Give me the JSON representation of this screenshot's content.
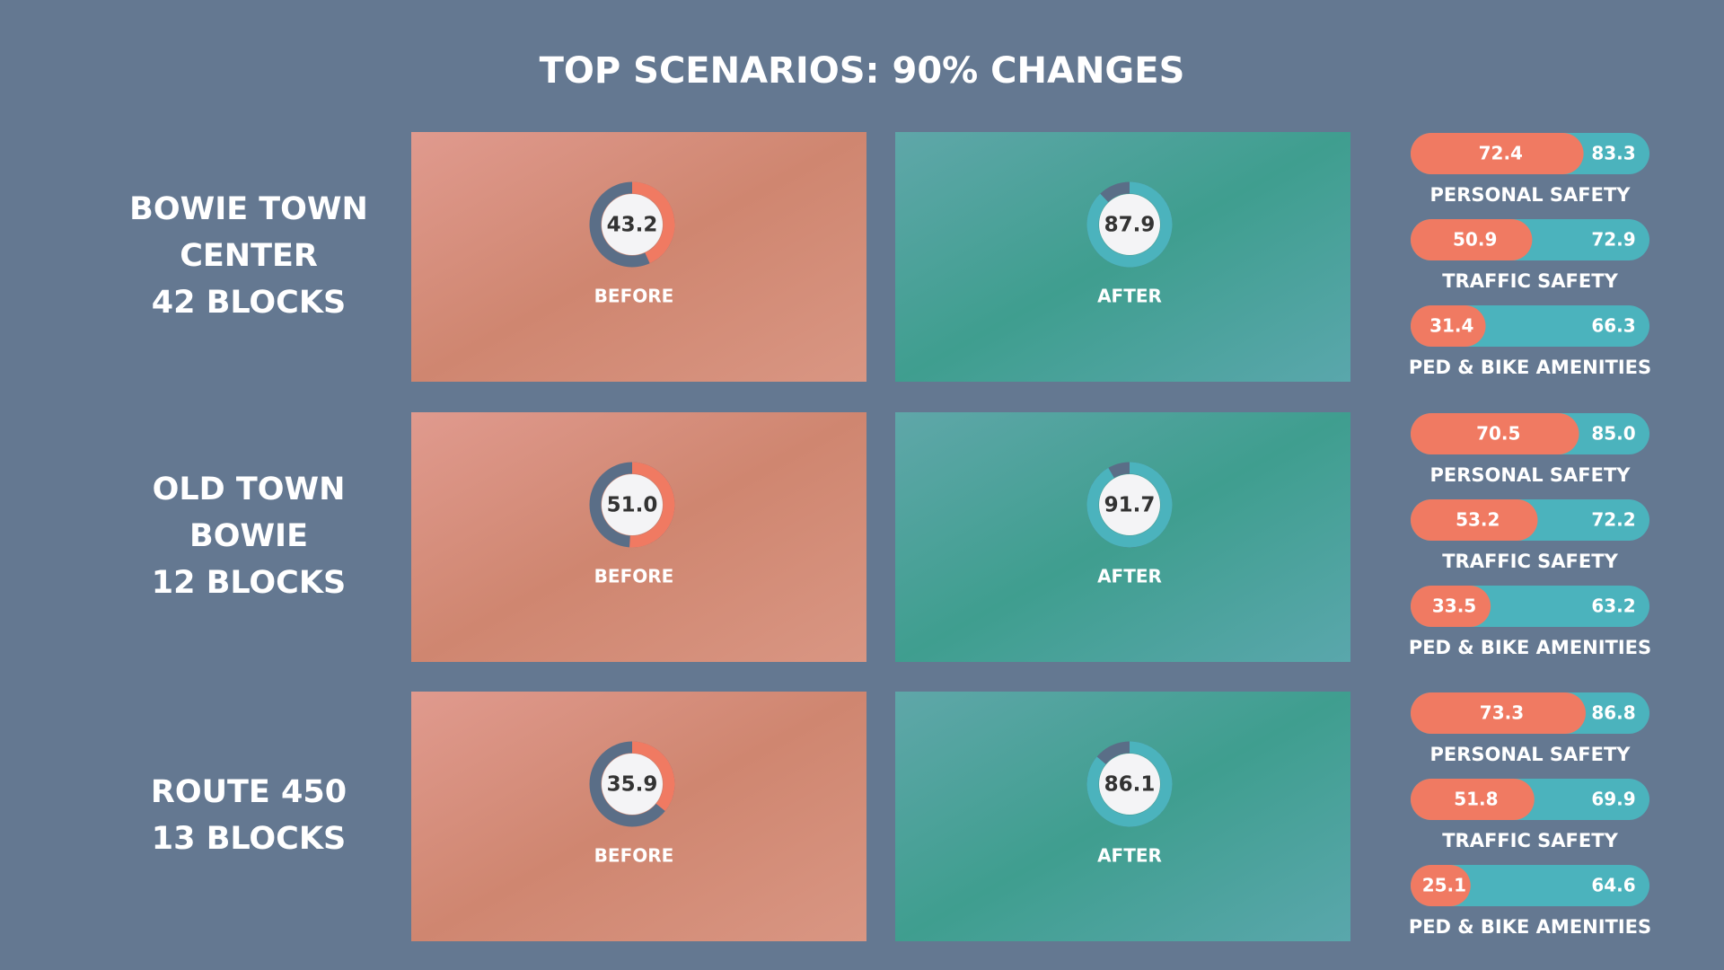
{
  "title": "TOP SCENARIOS: 90% CHANGES",
  "scenarios": [
    {
      "name_lines": [
        "BOWIE TOWN",
        "CENTER",
        "42 BLOCKS"
      ],
      "before": {
        "score": 43.2,
        "label": "BEFORE"
      },
      "after": {
        "score": 87.9,
        "label": "AFTER"
      },
      "metrics": [
        {
          "name": "PERSONAL SAFETY",
          "before": 72.4,
          "after": 83.3
        },
        {
          "name": "TRAFFIC SAFETY",
          "before": 50.9,
          "after": 72.9
        },
        {
          "name": "PED & BIKE AMENITIES",
          "before": 31.4,
          "after": 66.3
        }
      ]
    },
    {
      "name_lines": [
        "OLD TOWN",
        "BOWIE",
        "12 BLOCKS"
      ],
      "before": {
        "score": {
          "value": 51,
          "label": "51.0"
        },
        "label": "BEFORE"
      },
      "after": {
        "score": 91.7,
        "label": "AFTER"
      },
      "metrics": [
        {
          "name": "PERSONAL SAFETY",
          "before": 70.5,
          "after": {
            "value": 85,
            "label": "85.0"
          }
        },
        {
          "name": "TRAFFIC SAFETY",
          "before": 53.2,
          "after": 72.2
        },
        {
          "name": "PED & BIKE AMENITIES",
          "before": 33.5,
          "after": 63.2
        }
      ]
    },
    {
      "name_lines": [
        "ROUTE 450",
        "13 BLOCKS"
      ],
      "before": {
        "score": 35.9,
        "label": "BEFORE"
      },
      "after": {
        "score": 86.1,
        "label": "AFTER"
      },
      "metrics": [
        {
          "name": "PERSONAL SAFETY",
          "before": 73.3,
          "after": 86.8
        },
        {
          "name": "TRAFFIC SAFETY",
          "before": 51.8,
          "after": 69.9
        },
        {
          "name": "PED & BIKE AMENITIES",
          "before": 25.1,
          "after": 64.6
        }
      ]
    }
  ]
}
